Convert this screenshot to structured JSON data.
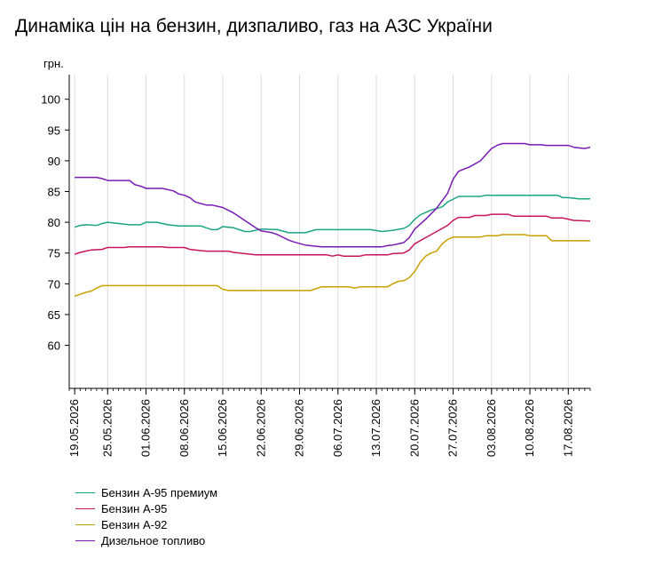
{
  "chart_data": {
    "type": "line",
    "title": "Динаміка цін на бензин, дизпаливо, газ на АЗС України",
    "ylabel": "грн.",
    "xlabel": "",
    "ylim": [
      53,
      104
    ],
    "yticks": [
      60,
      65,
      70,
      75,
      80,
      85,
      90,
      95,
      100
    ],
    "xrange": [
      "2026-05-18",
      "2026-08-21"
    ],
    "xticks": [
      "19.05.2026",
      "25.05.2026",
      "01.06.2026",
      "08.06.2026",
      "15.06.2026",
      "22.06.2026",
      "29.06.2026",
      "06.07.2026",
      "13.07.2026",
      "20.07.2026",
      "27.07.2026",
      "03.08.2026",
      "10.08.2026",
      "17.08.2026"
    ],
    "grid": {
      "x": true,
      "y": false
    },
    "legend_position": "bottom-left",
    "series": [
      {
        "name": "Бензин А-95 премиум",
        "color": "#1aa583",
        "points": [
          [
            "2026-05-19",
            79.2
          ],
          [
            "2026-05-20",
            79.5
          ],
          [
            "2026-05-21",
            79.6
          ],
          [
            "2026-05-23",
            79.5
          ],
          [
            "2026-05-24",
            79.8
          ],
          [
            "2026-05-25",
            80.0
          ],
          [
            "2026-05-27",
            79.8
          ],
          [
            "2026-05-29",
            79.6
          ],
          [
            "2026-05-31",
            79.6
          ],
          [
            "2026-06-01",
            80.0
          ],
          [
            "2026-06-03",
            80.0
          ],
          [
            "2026-06-05",
            79.6
          ],
          [
            "2026-06-07",
            79.4
          ],
          [
            "2026-06-11",
            79.4
          ],
          [
            "2026-06-13",
            78.8
          ],
          [
            "2026-06-14",
            78.8
          ],
          [
            "2026-06-15",
            79.3
          ],
          [
            "2026-06-17",
            79.1
          ],
          [
            "2026-06-19",
            78.5
          ],
          [
            "2026-06-20",
            78.5
          ],
          [
            "2026-06-22",
            78.9
          ],
          [
            "2026-06-25",
            78.8
          ],
          [
            "2026-06-27",
            78.3
          ],
          [
            "2026-06-30",
            78.3
          ],
          [
            "2026-07-02",
            78.8
          ],
          [
            "2026-07-12",
            78.8
          ],
          [
            "2026-07-14",
            78.5
          ],
          [
            "2026-07-16",
            78.7
          ],
          [
            "2026-07-18",
            79.0
          ],
          [
            "2026-07-19",
            79.5
          ],
          [
            "2026-07-20",
            80.5
          ],
          [
            "2026-07-21",
            81.2
          ],
          [
            "2026-07-23",
            82.0
          ],
          [
            "2026-07-25",
            82.5
          ],
          [
            "2026-07-26",
            83.3
          ],
          [
            "2026-07-28",
            84.2
          ],
          [
            "2026-08-01",
            84.2
          ],
          [
            "2026-08-02",
            84.4
          ],
          [
            "2026-08-15",
            84.4
          ],
          [
            "2026-08-16",
            84.0
          ],
          [
            "2026-08-17",
            84.0
          ],
          [
            "2026-08-19",
            83.8
          ],
          [
            "2026-08-21",
            83.8
          ]
        ]
      },
      {
        "name": "Бензин А-95",
        "color": "#c8145c",
        "points": [
          [
            "2026-05-19",
            74.8
          ],
          [
            "2026-05-20",
            75.1
          ],
          [
            "2026-05-21",
            75.3
          ],
          [
            "2026-05-22",
            75.5
          ],
          [
            "2026-05-24",
            75.6
          ],
          [
            "2026-05-25",
            75.9
          ],
          [
            "2026-05-28",
            75.9
          ],
          [
            "2026-05-29",
            76.0
          ],
          [
            "2026-06-04",
            76.0
          ],
          [
            "2026-06-05",
            75.9
          ],
          [
            "2026-06-08",
            75.9
          ],
          [
            "2026-06-09",
            75.6
          ],
          [
            "2026-06-11",
            75.4
          ],
          [
            "2026-06-12",
            75.3
          ],
          [
            "2026-06-16",
            75.3
          ],
          [
            "2026-06-17",
            75.1
          ],
          [
            "2026-06-19",
            74.9
          ],
          [
            "2026-06-21",
            74.7
          ],
          [
            "2026-07-04",
            74.7
          ],
          [
            "2026-07-05",
            74.5
          ],
          [
            "2026-07-06",
            74.7
          ],
          [
            "2026-07-07",
            74.5
          ],
          [
            "2026-07-10",
            74.5
          ],
          [
            "2026-07-11",
            74.7
          ],
          [
            "2026-07-15",
            74.7
          ],
          [
            "2026-07-16",
            74.9
          ],
          [
            "2026-07-18",
            75.0
          ],
          [
            "2026-07-19",
            75.5
          ],
          [
            "2026-07-20",
            76.5
          ],
          [
            "2026-07-22",
            77.5
          ],
          [
            "2026-07-24",
            78.5
          ],
          [
            "2026-07-26",
            79.5
          ],
          [
            "2026-07-27",
            80.3
          ],
          [
            "2026-07-28",
            80.8
          ],
          [
            "2026-07-30",
            80.8
          ],
          [
            "2026-07-31",
            81.1
          ],
          [
            "2026-08-02",
            81.1
          ],
          [
            "2026-08-03",
            81.3
          ],
          [
            "2026-08-06",
            81.3
          ],
          [
            "2026-08-07",
            81.0
          ],
          [
            "2026-08-13",
            81.0
          ],
          [
            "2026-08-14",
            80.7
          ],
          [
            "2026-08-16",
            80.7
          ],
          [
            "2026-08-18",
            80.3
          ],
          [
            "2026-08-21",
            80.2
          ]
        ]
      },
      {
        "name": "Бензин А-92",
        "color": "#c8a000",
        "points": [
          [
            "2026-05-19",
            68.0
          ],
          [
            "2026-05-20",
            68.3
          ],
          [
            "2026-05-21",
            68.6
          ],
          [
            "2026-05-22",
            68.8
          ],
          [
            "2026-05-23",
            69.3
          ],
          [
            "2026-05-24",
            69.7
          ],
          [
            "2026-06-14",
            69.7
          ],
          [
            "2026-06-15",
            69.1
          ],
          [
            "2026-06-16",
            68.9
          ],
          [
            "2026-07-01",
            68.9
          ],
          [
            "2026-07-02",
            69.2
          ],
          [
            "2026-07-03",
            69.5
          ],
          [
            "2026-07-08",
            69.5
          ],
          [
            "2026-07-09",
            69.3
          ],
          [
            "2026-07-10",
            69.5
          ],
          [
            "2026-07-15",
            69.5
          ],
          [
            "2026-07-16",
            70.0
          ],
          [
            "2026-07-17",
            70.4
          ],
          [
            "2026-07-18",
            70.5
          ],
          [
            "2026-07-19",
            71.0
          ],
          [
            "2026-07-20",
            72.0
          ],
          [
            "2026-07-21",
            73.5
          ],
          [
            "2026-07-22",
            74.5
          ],
          [
            "2026-07-23",
            75.0
          ],
          [
            "2026-07-24",
            75.3
          ],
          [
            "2026-07-25",
            76.5
          ],
          [
            "2026-07-26",
            77.2
          ],
          [
            "2026-07-27",
            77.6
          ],
          [
            "2026-08-01",
            77.6
          ],
          [
            "2026-08-02",
            77.8
          ],
          [
            "2026-08-04",
            77.8
          ],
          [
            "2026-08-05",
            78.0
          ],
          [
            "2026-08-09",
            78.0
          ],
          [
            "2026-08-10",
            77.8
          ],
          [
            "2026-08-13",
            77.8
          ],
          [
            "2026-08-14",
            77.0
          ],
          [
            "2026-08-21",
            77.0
          ]
        ]
      },
      {
        "name": "Дизельное топливо",
        "color": "#7a1ab5",
        "points": [
          [
            "2026-05-19",
            87.3
          ],
          [
            "2026-05-23",
            87.3
          ],
          [
            "2026-05-24",
            87.1
          ],
          [
            "2026-05-25",
            86.8
          ],
          [
            "2026-05-29",
            86.8
          ],
          [
            "2026-05-30",
            86.1
          ],
          [
            "2026-05-31",
            85.9
          ],
          [
            "2026-06-01",
            85.5
          ],
          [
            "2026-06-04",
            85.5
          ],
          [
            "2026-06-06",
            85.1
          ],
          [
            "2026-06-07",
            84.6
          ],
          [
            "2026-06-08",
            84.4
          ],
          [
            "2026-06-09",
            84.0
          ],
          [
            "2026-06-10",
            83.3
          ],
          [
            "2026-06-12",
            82.8
          ],
          [
            "2026-06-13",
            82.8
          ],
          [
            "2026-06-15",
            82.4
          ],
          [
            "2026-06-17",
            81.5
          ],
          [
            "2026-06-19",
            80.3
          ],
          [
            "2026-06-21",
            79.1
          ],
          [
            "2026-06-22",
            78.6
          ],
          [
            "2026-06-24",
            78.3
          ],
          [
            "2026-06-25",
            78.0
          ],
          [
            "2026-06-27",
            77.1
          ],
          [
            "2026-06-28",
            76.8
          ],
          [
            "2026-06-30",
            76.3
          ],
          [
            "2026-07-02",
            76.1
          ],
          [
            "2026-07-03",
            76.0
          ],
          [
            "2026-07-14",
            76.0
          ],
          [
            "2026-07-15",
            76.2
          ],
          [
            "2026-07-16",
            76.3
          ],
          [
            "2026-07-18",
            76.7
          ],
          [
            "2026-07-19",
            77.5
          ],
          [
            "2026-07-20",
            78.9
          ],
          [
            "2026-07-22",
            80.5
          ],
          [
            "2026-07-24",
            82.3
          ],
          [
            "2026-07-26",
            84.7
          ],
          [
            "2026-07-27",
            87.0
          ],
          [
            "2026-07-28",
            88.3
          ],
          [
            "2026-07-30",
            89.0
          ],
          [
            "2026-08-01",
            90.0
          ],
          [
            "2026-08-02",
            91.0
          ],
          [
            "2026-08-03",
            92.0
          ],
          [
            "2026-08-04",
            92.5
          ],
          [
            "2026-08-05",
            92.8
          ],
          [
            "2026-08-09",
            92.8
          ],
          [
            "2026-08-10",
            92.6
          ],
          [
            "2026-08-12",
            92.6
          ],
          [
            "2026-08-13",
            92.5
          ],
          [
            "2026-08-17",
            92.5
          ],
          [
            "2026-08-18",
            92.2
          ],
          [
            "2026-08-20",
            92.0
          ],
          [
            "2026-08-21",
            92.2
          ]
        ]
      }
    ]
  }
}
